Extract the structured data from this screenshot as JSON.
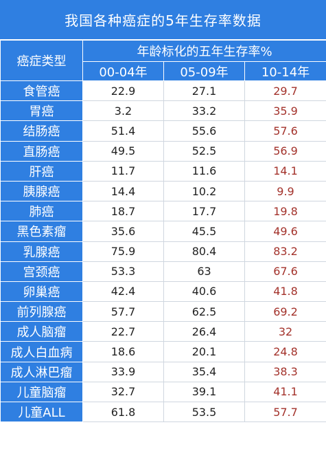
{
  "title": "我国各种癌症的5年生存率数据",
  "header": {
    "type_col": "癌症类型",
    "group": "年龄标化的五年生存率%",
    "periods": [
      "00-04年",
      "05-09年",
      "10-14年"
    ]
  },
  "colors": {
    "header_bg": "#2f7fe1",
    "header_text": "#ffffff",
    "recent_value": "#a3322b",
    "value": "#222222"
  },
  "chart_data": {
    "type": "table",
    "title": "我国各种癌症的5年生存率数据",
    "columns": [
      "癌症类型",
      "00-04年",
      "05-09年",
      "10-14年"
    ],
    "group_header": "年龄标化的五年生存率%",
    "rows": [
      {
        "type": "食管癌",
        "values": [
          22.9,
          27.1,
          29.7
        ]
      },
      {
        "type": "胃癌",
        "values": [
          3.2,
          33.2,
          35.9
        ]
      },
      {
        "type": "结肠癌",
        "values": [
          51.4,
          55.6,
          57.6
        ]
      },
      {
        "type": "直肠癌",
        "values": [
          49.5,
          52.5,
          56.9
        ]
      },
      {
        "type": "肝癌",
        "values": [
          11.7,
          11.6,
          14.1
        ]
      },
      {
        "type": "胰腺癌",
        "values": [
          14.4,
          10.2,
          9.9
        ]
      },
      {
        "type": "肺癌",
        "values": [
          18.7,
          17.7,
          19.8
        ]
      },
      {
        "type": "黑色素瘤",
        "values": [
          35.6,
          45.5,
          49.6
        ]
      },
      {
        "type": "乳腺癌",
        "values": [
          75.9,
          80.4,
          83.2
        ]
      },
      {
        "type": "宫颈癌",
        "values": [
          53.3,
          63,
          67.6
        ]
      },
      {
        "type": "卵巢癌",
        "values": [
          42.4,
          40.6,
          41.8
        ]
      },
      {
        "type": "前列腺癌",
        "values": [
          57.7,
          62.5,
          69.2
        ]
      },
      {
        "type": "成人脑瘤",
        "values": [
          22.7,
          26.4,
          32
        ]
      },
      {
        "type": "成人白血病",
        "values": [
          18.6,
          20.1,
          24.8
        ]
      },
      {
        "type": "成人淋巴瘤",
        "values": [
          33.9,
          35.4,
          38.3
        ]
      },
      {
        "type": "儿童脑瘤",
        "values": [
          32.7,
          39.1,
          41.1
        ]
      },
      {
        "type": "儿童ALL",
        "values": [
          61.8,
          53.5,
          57.7
        ]
      }
    ]
  }
}
